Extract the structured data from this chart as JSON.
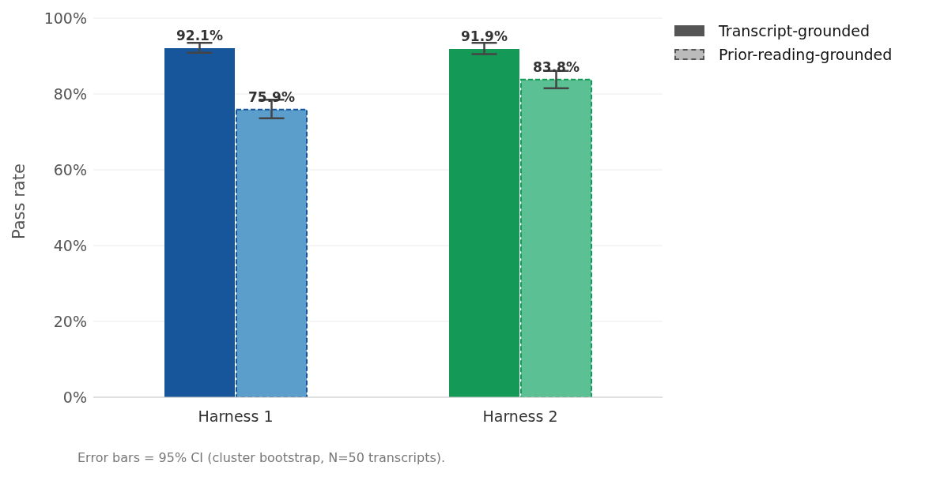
{
  "chart_data": {
    "type": "bar",
    "ylabel": "Pass rate",
    "categories": [
      "Harness 1",
      "Harness 2"
    ],
    "series": [
      {
        "name": "Transcript-grounded",
        "color": "#555555",
        "colors": [
          "#17569a",
          "#159957"
        ],
        "values": [
          92.1,
          91.9
        ],
        "errors": [
          [
            90.9,
            93.5
          ],
          [
            90.5,
            93.5
          ]
        ],
        "value_labels": [
          "92.1%",
          "91.9%"
        ]
      },
      {
        "name": "Prior-reading-grounded",
        "color": "#bbbbbb",
        "colors": [
          "#5b9ecb",
          "#5bc194"
        ],
        "line_style": "dashed",
        "values": [
          75.9,
          83.8
        ],
        "errors": [
          [
            73.6,
            78.5
          ],
          [
            81.5,
            86.1
          ]
        ],
        "value_labels": [
          "75.9%",
          "83.8%"
        ]
      }
    ],
    "ylim": [
      0,
      100
    ],
    "yticks": [
      {
        "value": 0,
        "label": "0%"
      },
      {
        "value": 20,
        "label": "20%"
      },
      {
        "value": 40,
        "label": "40%"
      },
      {
        "value": 60,
        "label": "60%"
      },
      {
        "value": 80,
        "label": "80%"
      },
      {
        "value": 100,
        "label": "100%"
      }
    ],
    "grid": "y",
    "legend": "top right",
    "annotations": [
      "Error bars = 95% CI (cluster bootstrap, N=50 transcripts)."
    ]
  }
}
